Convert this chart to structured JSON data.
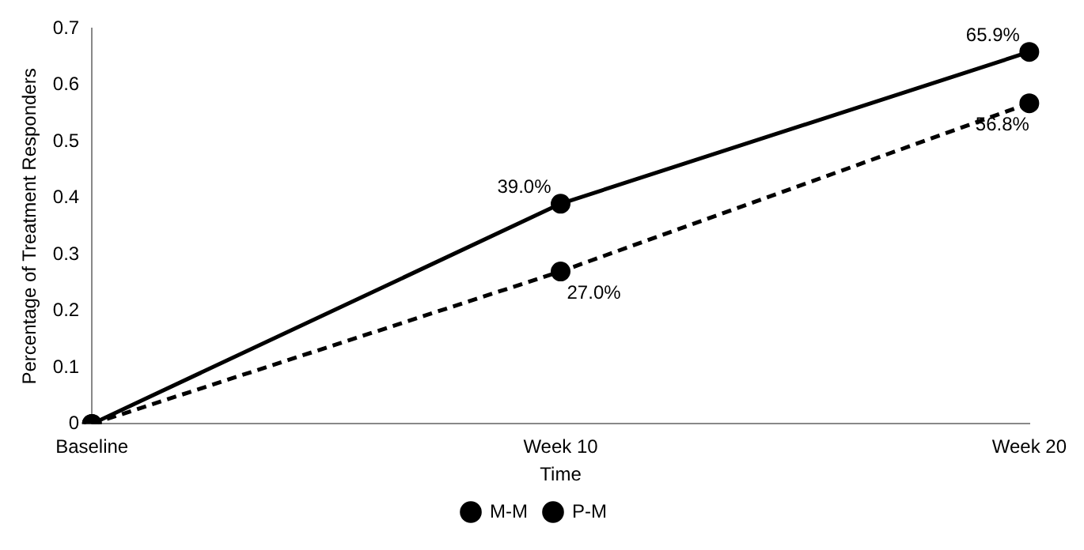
{
  "chart_data": {
    "type": "line",
    "xlabel": "Time",
    "ylabel": "Percentage of Treatment Responders",
    "categories": [
      "Baseline",
      "Week 10",
      "Week 20"
    ],
    "series": [
      {
        "name": "M-M",
        "color": "#000000",
        "line_style": "solid",
        "values": [
          0,
          0.39,
          0.659
        ],
        "value_labels": [
          null,
          "39.0%",
          "65.9%"
        ]
      },
      {
        "name": "P-M",
        "color": "#000000",
        "line_style": "dashed",
        "values": [
          0,
          0.27,
          0.568
        ],
        "value_labels": [
          null,
          "27.0%",
          "56.8%"
        ]
      }
    ],
    "ylim": [
      0,
      0.7
    ],
    "yticks": [
      0,
      0.1,
      0.2,
      0.3,
      0.4,
      0.5,
      0.6,
      0.7
    ],
    "marker": "circle",
    "grid": false,
    "legend": "bottom"
  }
}
